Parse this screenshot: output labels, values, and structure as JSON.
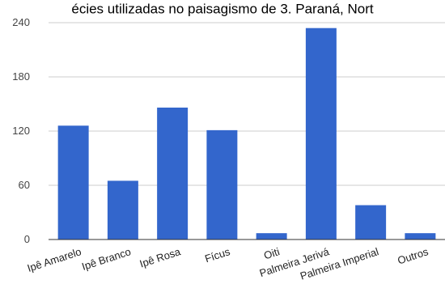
{
  "chart_data": {
    "type": "bar",
    "title": "...ecies utilizadas no paisagismo de 3. Paraná, Nort...",
    "title_visible": "écies utilizadas no paisagismo de 3. Paraná, Nort",
    "xlabel": "",
    "ylabel": "",
    "categories": [
      "Ipê Amarelo",
      "Ipê Branco",
      "Ipê Rosa",
      "Fícus",
      "Oiti",
      "Palmeira Jerivá",
      "Palmeira Imperial",
      "Outros"
    ],
    "values": [
      126,
      65,
      146,
      121,
      7,
      234,
      38,
      7
    ],
    "ylim": [
      0,
      240
    ],
    "yticks": [
      0,
      60,
      120,
      180,
      240
    ],
    "ytick_labels": [
      "0",
      "60",
      "120",
      "180",
      "240"
    ],
    "grid": true,
    "legend": "none",
    "colors": {
      "bar": "#3366cc",
      "grid": "#cccccc",
      "axis": "#333333"
    }
  }
}
